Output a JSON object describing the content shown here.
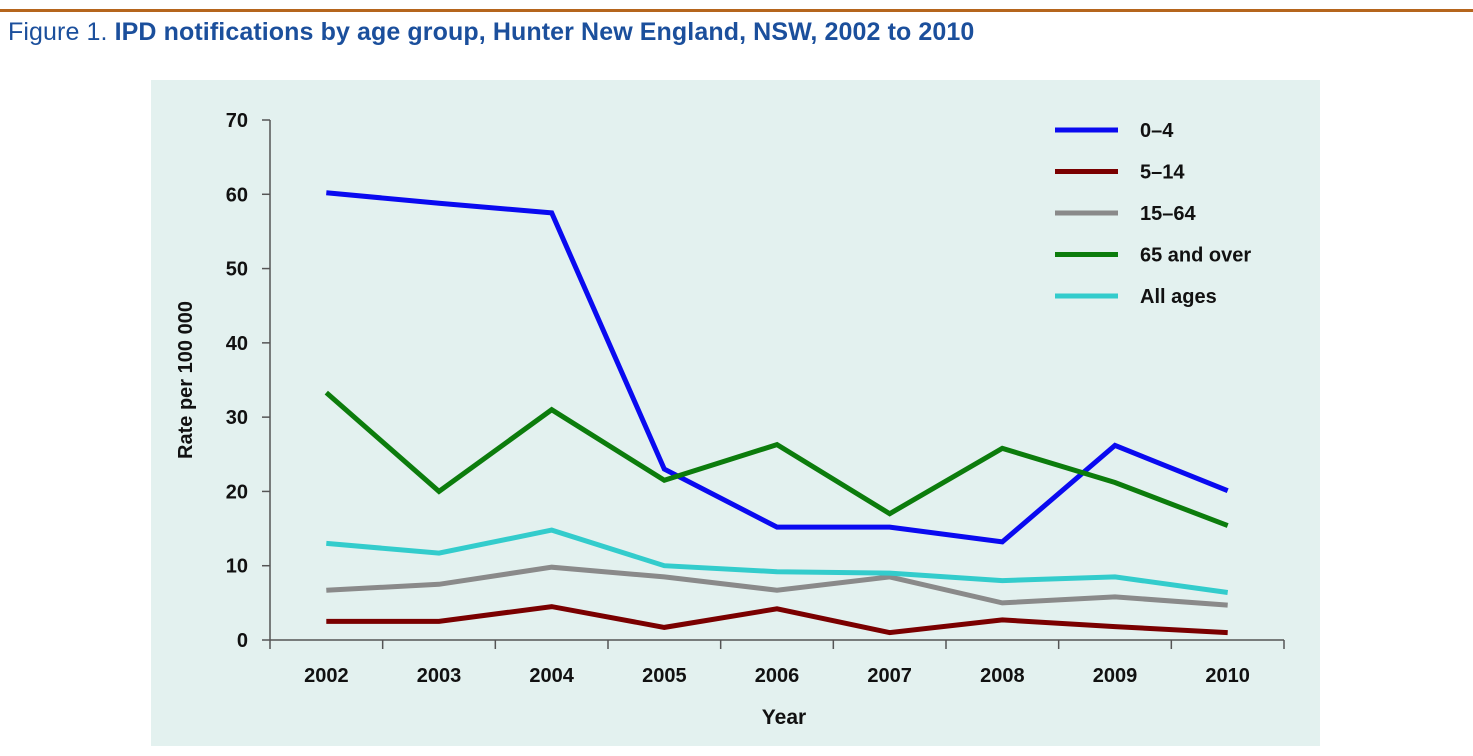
{
  "figure": {
    "label": "Figure 1.",
    "title": "IPD notifications by age group, Hunter New England, NSW, 2002 to 2010"
  },
  "chart_data": {
    "type": "line",
    "title": "IPD notifications by age group, Hunter New England, NSW, 2002 to 2010",
    "xlabel": "Year",
    "ylabel": "Rate per 100 000",
    "ylim": [
      0,
      70
    ],
    "yticks": [
      0,
      10,
      20,
      30,
      40,
      50,
      60,
      70
    ],
    "categories": [
      "2002",
      "2003",
      "2004",
      "2005",
      "2006",
      "2007",
      "2008",
      "2009",
      "2010"
    ],
    "grid": false,
    "legend_position": "top-right",
    "series": [
      {
        "name": "0–4",
        "color": "#0a0af0",
        "values": [
          60.2,
          58.8,
          57.5,
          23.0,
          15.2,
          15.2,
          13.2,
          26.2,
          20.1
        ]
      },
      {
        "name": "5–14",
        "color": "#7a0000",
        "values": [
          2.5,
          2.5,
          4.5,
          1.7,
          4.2,
          1.0,
          2.7,
          1.8,
          1.0
        ]
      },
      {
        "name": "15–64",
        "color": "#8a8a8a",
        "values": [
          6.7,
          7.5,
          9.8,
          8.5,
          6.7,
          8.5,
          5.0,
          5.8,
          4.7
        ]
      },
      {
        "name": "65 and over",
        "color": "#0c7c0c",
        "values": [
          33.3,
          20.0,
          31.0,
          21.5,
          26.3,
          17.0,
          25.8,
          21.2,
          15.4
        ]
      },
      {
        "name": "All ages",
        "color": "#33cccc",
        "values": [
          13.0,
          11.7,
          14.8,
          10.0,
          9.2,
          9.0,
          8.0,
          8.5,
          6.4
        ]
      }
    ]
  }
}
